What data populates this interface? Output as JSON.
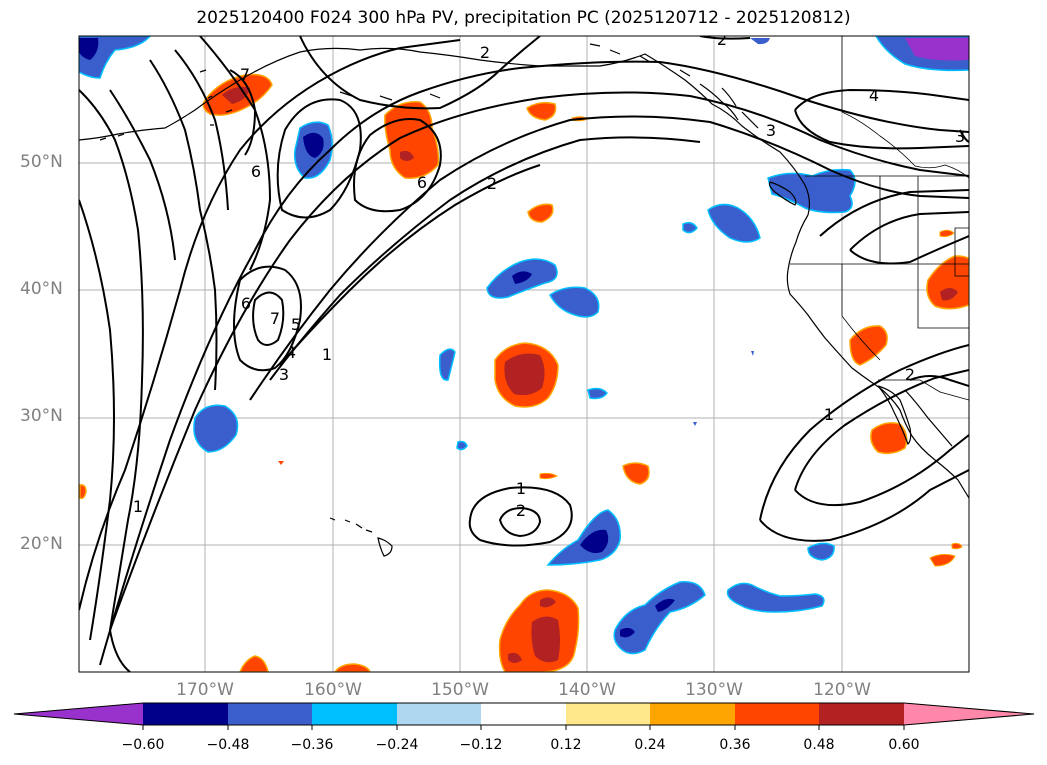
{
  "title": "2025120400 F024 300 hPa PV, precipitation PC (2025120712 - 2025120812)",
  "lat_labels": [
    "50°N",
    "40°N",
    "30°N",
    "20°N"
  ],
  "lon_labels": [
    "170°W",
    "160°W",
    "150°W",
    "140°W",
    "130°W",
    "120°W"
  ],
  "contour_labels": {
    "a": "2",
    "b": "2",
    "c": "4",
    "d": "3",
    "e": "7",
    "f": "6",
    "g": "6",
    "h": "2",
    "i": "6",
    "j": "7",
    "k": "5",
    "l": "4",
    "m": "3",
    "n": "1",
    "o": "1",
    "p": "1",
    "q": "2",
    "r": "1",
    "s": "2",
    "t": "3"
  },
  "colorbar": {
    "ticks": [
      "−0.60",
      "−0.48",
      "−0.36",
      "−0.24",
      "−0.12",
      "0.12",
      "0.24",
      "0.36",
      "0.48",
      "0.60"
    ],
    "colors": [
      "#9932cc",
      "#00008b",
      "#3a5fcd",
      "#00bfff",
      "#add8f0",
      "#ffffff",
      "#ffe88c",
      "#ffa500",
      "#ff4500",
      "#b22222",
      "#ff88aa"
    ]
  },
  "colors": {
    "neg_strong": "#00008b",
    "neg_mid": "#3a5fcd",
    "neg_weak": "#00bfff",
    "pos_weak": "#ffa500",
    "pos_mid": "#ff4500",
    "pos_strong": "#b22222",
    "neg_extreme": "#9932cc",
    "grid": "#b0b0b0",
    "axis_label": "#808080"
  }
}
